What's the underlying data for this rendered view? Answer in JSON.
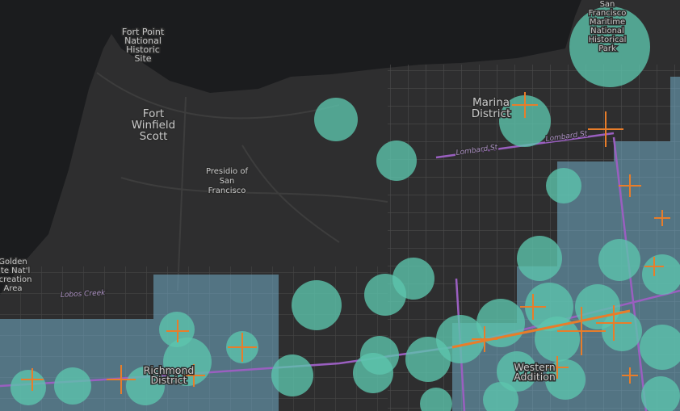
{
  "labels": [
    {
      "lines": [
        "San",
        "Francisco",
        "Maritime",
        "National",
        "Historical",
        "Park"
      ]
    },
    {
      "lines": [
        "Fort Point",
        "National",
        "Historic",
        "Site"
      ]
    },
    {
      "lines": [
        "Fort",
        "Winfield",
        "Scott"
      ]
    },
    {
      "lines": [
        "Marina",
        "District"
      ]
    },
    {
      "lines": [
        "Presidio of",
        "San",
        "Francisco"
      ]
    },
    {
      "lines": [
        "Golden",
        "ate Nat'l",
        "ecreation",
        "Area"
      ]
    },
    {
      "lines": [
        "Richmond",
        "District"
      ]
    },
    {
      "lines": [
        "Western",
        "Addition"
      ]
    }
  ],
  "streets": [
    "Lombard St",
    "Lombard St",
    "Lobos Creek"
  ]
}
